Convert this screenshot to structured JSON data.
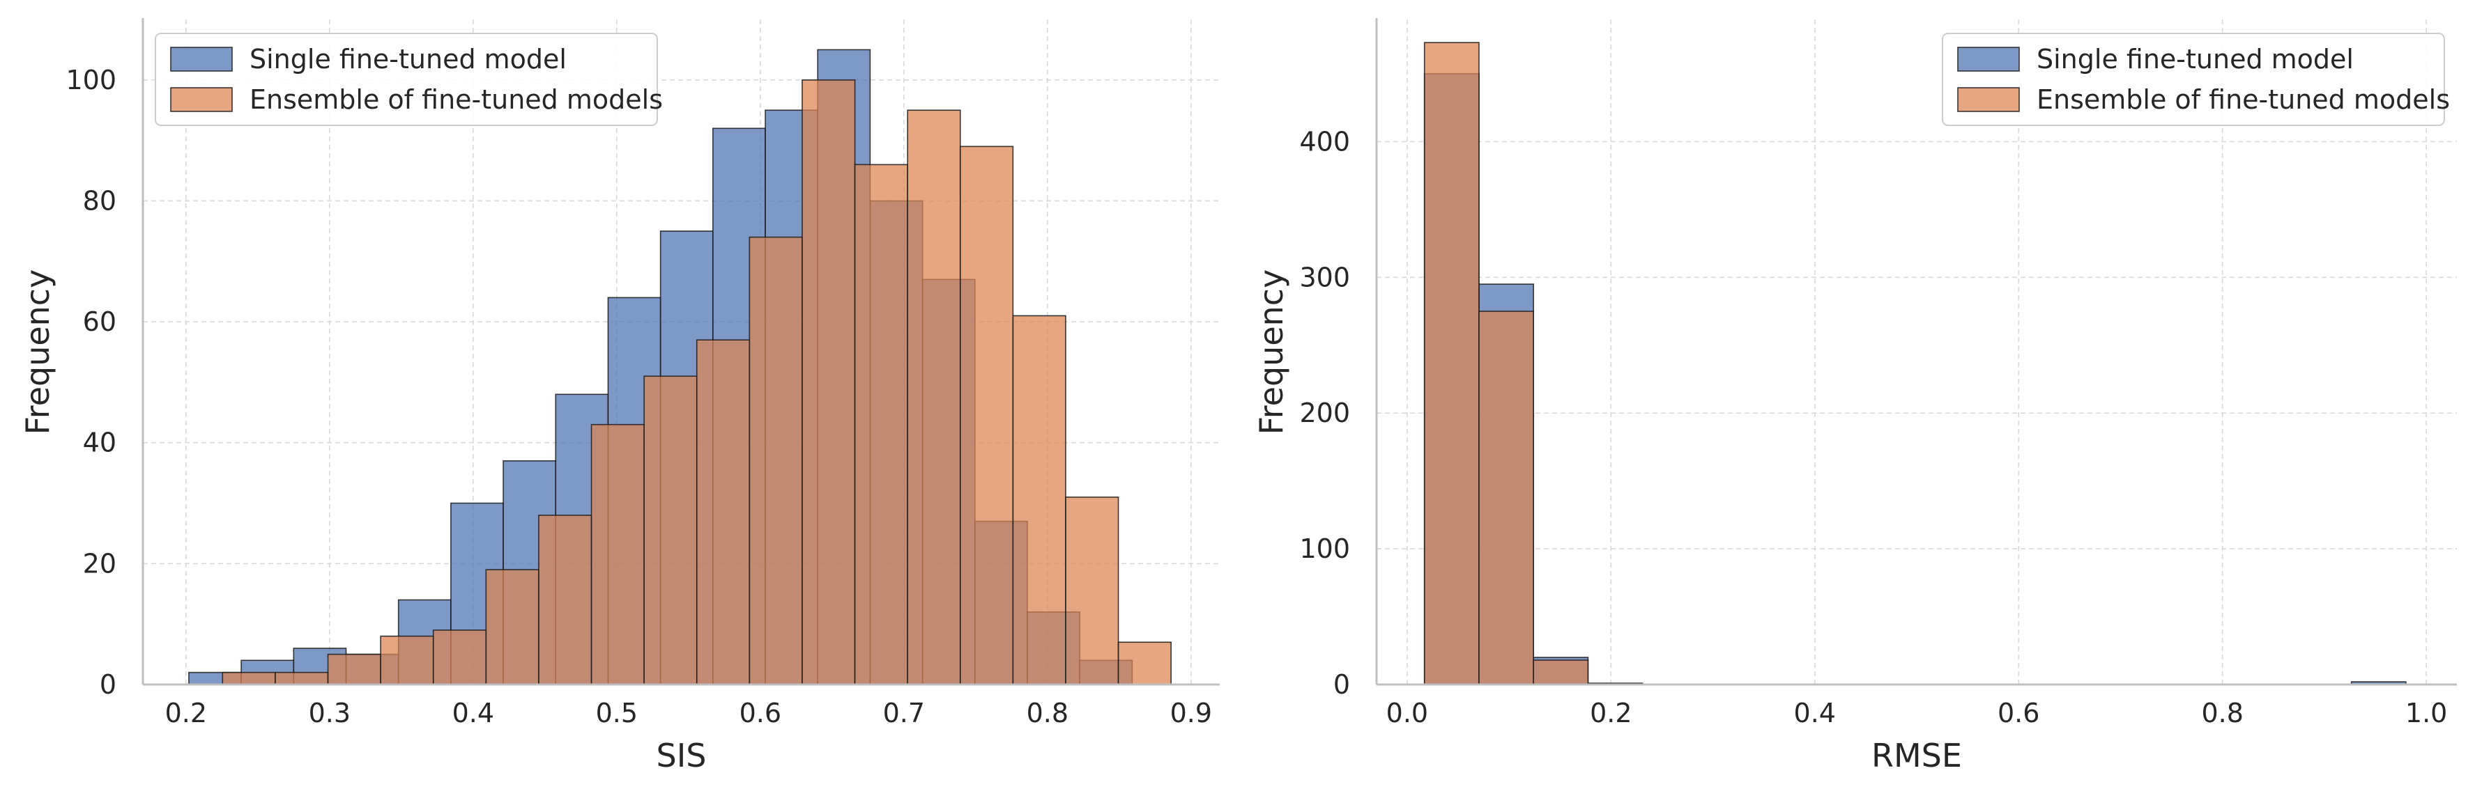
{
  "colors": {
    "single": "#4c72b0",
    "ensemble": "#dd8452",
    "edge": "#1a1a1a",
    "grid": "#d9d9d9",
    "axis": "#bfbfbf",
    "text": "#262626"
  },
  "chart_data": [
    {
      "type": "bar",
      "subtype": "histogram-overlay",
      "xlabel": "SIS",
      "ylabel": "Frequency",
      "xlim": [
        0.17,
        0.92
      ],
      "ylim": [
        0,
        110
      ],
      "xticks": [
        0.2,
        0.3,
        0.4,
        0.5,
        0.6,
        0.7,
        0.8,
        0.9
      ],
      "yticks": [
        0,
        20,
        40,
        60,
        80,
        100
      ],
      "xtick_labels": [
        "0.2",
        "0.3",
        "0.4",
        "0.5",
        "0.6",
        "0.7",
        "0.8",
        "0.9"
      ],
      "ytick_labels": [
        "0",
        "20",
        "40",
        "60",
        "80",
        "100"
      ],
      "grid": true,
      "legend_position": "top-left",
      "series": [
        {
          "name": "Single fine-tuned model",
          "bin_start": 0.202,
          "bin_width": 0.0365,
          "values": [
            2,
            4,
            6,
            5,
            14,
            30,
            37,
            48,
            64,
            75,
            92,
            95,
            105,
            80,
            67,
            27,
            12,
            4
          ]
        },
        {
          "name": "Ensemble of fine-tuned models",
          "bin_start": 0.2255,
          "bin_width": 0.0367,
          "values": [
            2,
            2,
            5,
            8,
            9,
            19,
            28,
            43,
            51,
            57,
            74,
            100,
            86,
            95,
            89,
            61,
            31,
            7
          ]
        }
      ]
    },
    {
      "type": "bar",
      "subtype": "histogram-overlay",
      "xlabel": "RMSE",
      "ylabel": "Frequency",
      "xlim": [
        -0.03,
        1.03
      ],
      "ylim": [
        0,
        490
      ],
      "xticks": [
        0.0,
        0.2,
        0.4,
        0.6,
        0.8,
        1.0
      ],
      "yticks": [
        0,
        100,
        200,
        300,
        400
      ],
      "xtick_labels": [
        "0.0",
        "0.2",
        "0.4",
        "0.6",
        "0.8",
        "1.0"
      ],
      "ytick_labels": [
        "0",
        "100",
        "200",
        "300",
        "400"
      ],
      "grid": true,
      "legend_position": "top-right",
      "series": [
        {
          "name": "Single fine-tuned model",
          "bin_start": 0.017,
          "bin_width": 0.0535,
          "values": [
            450,
            295,
            20,
            1,
            0,
            0,
            0,
            0,
            0,
            0,
            0,
            0,
            0,
            0,
            0,
            0,
            0,
            2
          ]
        },
        {
          "name": "Ensemble of fine-tuned models",
          "bin_start": 0.017,
          "bin_width": 0.0535,
          "values": [
            473,
            275,
            18
          ]
        }
      ]
    }
  ]
}
